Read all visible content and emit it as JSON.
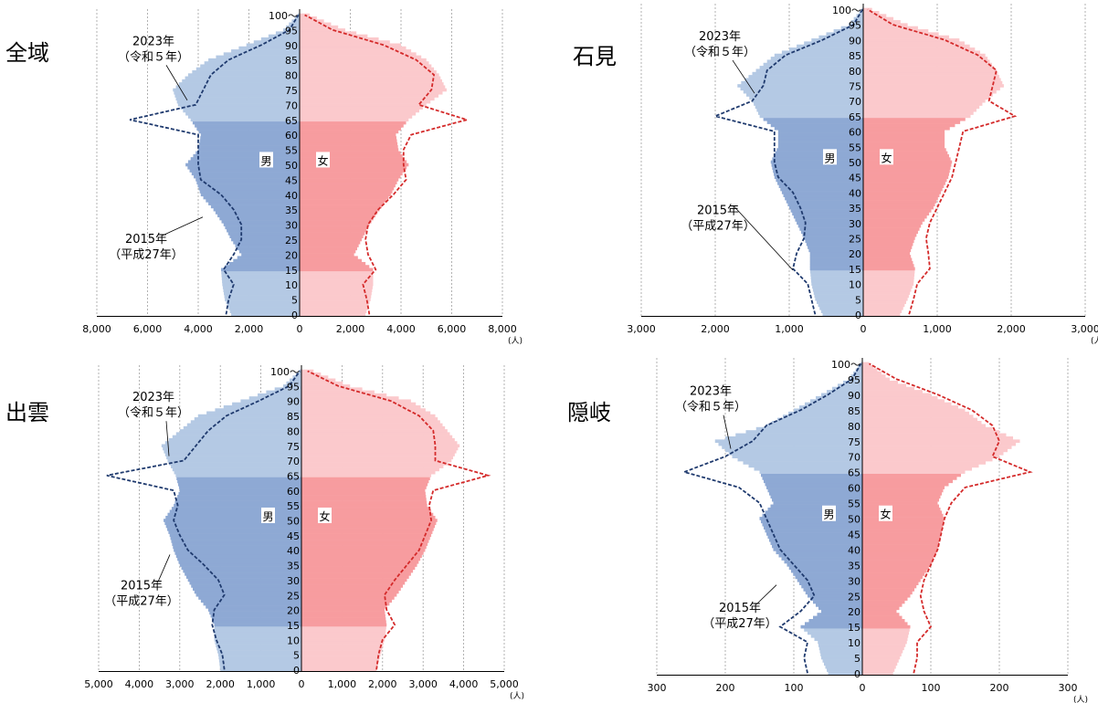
{
  "colors": {
    "male_base": "#b4c9e4",
    "male_mid": "#8ea9d4",
    "female_base": "#fbc9cc",
    "female_mid": "#f79c9f",
    "male_2015": "#1f3a6e",
    "female_2015": "#d42a2a",
    "grid": "#a0a0a0"
  },
  "panels": [
    {
      "region": "全域",
      "male_label": "男",
      "female_label": "女",
      "label2023_year": "2023年",
      "label2023_era": "（令和５年）",
      "label2015_year": "2015年",
      "label2015_era": "（平成27年）",
      "ticks_left": [
        "8,000",
        "6,000",
        "4,000",
        "2,000"
      ],
      "ticks_right": [
        "0",
        "2,000",
        "4,000",
        "6,000",
        "8,000"
      ],
      "unit": "(人)"
    },
    {
      "region": "石見",
      "male_label": "男",
      "female_label": "女",
      "label2023_year": "2023年",
      "label2023_era": "（令和５年）",
      "label2015_year": "2015年",
      "label2015_era": "（平成27年）",
      "ticks_left": [
        "3,000",
        "2,000",
        "1,000"
      ],
      "ticks_right": [
        "0",
        "1,000",
        "2,000",
        "3,000"
      ],
      "unit": "(人)"
    },
    {
      "region": "出雲",
      "male_label": "男",
      "female_label": "女",
      "label2023_year": "2023年",
      "label2023_era": "（令和５年）",
      "label2015_year": "2015年",
      "label2015_era": "（平成27年）",
      "ticks_left": [
        "5,000",
        "4,000",
        "3,000",
        "2,000",
        "1,000"
      ],
      "ticks_right": [
        "0",
        "1,000",
        "2,000",
        "3,000",
        "4,000",
        "5,000"
      ],
      "unit": "(人)"
    },
    {
      "region": "隠岐",
      "male_label": "男",
      "female_label": "女",
      "label2023_year": "2023年",
      "label2023_era": "（令和５年）",
      "label2015_year": "2015年",
      "label2015_era": "（平成27年）",
      "ticks_left": [
        "300",
        "200",
        "100"
      ],
      "ticks_right": [
        "0",
        "100",
        "200",
        "300"
      ],
      "unit": "(人)"
    }
  ],
  "age_labels": [
    "0",
    "5",
    "10",
    "15",
    "20",
    "25",
    "30",
    "35",
    "40",
    "45",
    "50",
    "55",
    "60",
    "65",
    "70",
    "75",
    "80",
    "85",
    "90",
    "95",
    "100～"
  ],
  "chart_data": [
    {
      "type": "bar",
      "title": "全域",
      "xmax": 8000,
      "ages": [
        0,
        5,
        10,
        15,
        20,
        25,
        30,
        35,
        40,
        45,
        50,
        55,
        60,
        65,
        70,
        75,
        80,
        85,
        90,
        95,
        100
      ],
      "series": [
        {
          "name": "男 2023",
          "values": [
            2700,
            2950,
            3050,
            3100,
            2300,
            2700,
            3000,
            3400,
            3900,
            4100,
            4500,
            4000,
            3900,
            4300,
            4800,
            5000,
            4400,
            3600,
            2100,
            650,
            80
          ]
        },
        {
          "name": "女 2023",
          "values": [
            2600,
            2800,
            2900,
            2900,
            2150,
            2450,
            2750,
            3150,
            3600,
            3900,
            4300,
            3900,
            3800,
            4300,
            5000,
            5800,
            5500,
            5000,
            4000,
            1800,
            400
          ]
        },
        {
          "name": "男 2015",
          "values": [
            2900,
            2800,
            2600,
            3000,
            2600,
            2300,
            2300,
            2600,
            3100,
            3900,
            4000,
            4000,
            4000,
            6700,
            4100,
            3800,
            3500,
            2800,
            1500,
            400,
            50
          ]
        },
        {
          "name": "女 2015",
          "values": [
            2750,
            2650,
            2500,
            3000,
            2700,
            2600,
            2700,
            3100,
            3700,
            4200,
            4100,
            4100,
            4400,
            6600,
            4700,
            5200,
            5300,
            4600,
            3300,
            1300,
            200
          ]
        }
      ]
    },
    {
      "type": "bar",
      "title": "石見",
      "xmax": 3000,
      "ages": [
        0,
        5,
        10,
        15,
        20,
        25,
        30,
        35,
        40,
        45,
        50,
        55,
        60,
        65,
        70,
        75,
        80,
        85,
        90,
        95,
        100
      ],
      "series": [
        {
          "name": "男 2023",
          "values": [
            550,
            650,
            700,
            720,
            720,
            800,
            900,
            1000,
            1100,
            1200,
            1250,
            1150,
            1150,
            1400,
            1500,
            1700,
            1450,
            1200,
            700,
            200,
            20
          ]
        },
        {
          "name": "女 2023",
          "values": [
            500,
            600,
            680,
            700,
            630,
            700,
            800,
            950,
            1050,
            1150,
            1200,
            1100,
            1100,
            1450,
            1650,
            1900,
            1800,
            1650,
            1300,
            600,
            120
          ]
        },
        {
          "name": "男 2015",
          "values": [
            650,
            700,
            750,
            950,
            900,
            800,
            780,
            850,
            950,
            1150,
            1200,
            1200,
            1200,
            2000,
            1500,
            1350,
            1300,
            1050,
            550,
            130,
            10
          ]
        },
        {
          "name": "女 2015",
          "values": [
            620,
            680,
            730,
            900,
            880,
            850,
            900,
            1000,
            1100,
            1200,
            1250,
            1300,
            1350,
            2050,
            1700,
            1750,
            1800,
            1550,
            1100,
            400,
            60
          ]
        }
      ]
    },
    {
      "type": "bar",
      "title": "出雲",
      "xmax": 5000,
      "ages": [
        0,
        5,
        10,
        15,
        20,
        25,
        30,
        35,
        40,
        45,
        50,
        55,
        60,
        65,
        70,
        75,
        80,
        85,
        90,
        95,
        100
      ],
      "series": [
        {
          "name": "男 2023",
          "values": [
            2000,
            2050,
            2150,
            2150,
            2300,
            2600,
            2800,
            3000,
            3150,
            3250,
            3400,
            3150,
            3000,
            3100,
            3300,
            3450,
            3000,
            2550,
            1500,
            450,
            60
          ]
        },
        {
          "name": "女 2023",
          "values": [
            1850,
            1950,
            2050,
            2100,
            2050,
            2350,
            2600,
            2850,
            3050,
            3200,
            3350,
            3100,
            3050,
            3200,
            3700,
            3900,
            3600,
            3300,
            2700,
            1200,
            300
          ]
        },
        {
          "name": "男 2015",
          "values": [
            1900,
            1950,
            2100,
            2200,
            2150,
            1900,
            2050,
            2400,
            2800,
            3000,
            3150,
            3050,
            3150,
            4800,
            2900,
            2600,
            2300,
            1850,
            1050,
            300,
            40
          ]
        },
        {
          "name": "女 2015",
          "values": [
            1850,
            1900,
            2000,
            2300,
            2100,
            2050,
            2300,
            2600,
            2900,
            3050,
            3200,
            3150,
            3250,
            4600,
            3300,
            3300,
            3250,
            2900,
            2200,
            900,
            150
          ]
        }
      ]
    },
    {
      "type": "bar",
      "title": "隠岐",
      "xmax": 300,
      "ages": [
        0,
        5,
        10,
        15,
        20,
        25,
        30,
        35,
        40,
        45,
        50,
        55,
        60,
        65,
        70,
        75,
        80,
        85,
        90,
        95,
        100
      ],
      "series": [
        {
          "name": "男 2023",
          "values": [
            50,
            60,
            65,
            90,
            60,
            80,
            95,
            110,
            130,
            140,
            150,
            130,
            140,
            150,
            190,
            215,
            140,
            100,
            60,
            20,
            3
          ]
        },
        {
          "name": "女 2023",
          "values": [
            45,
            55,
            65,
            70,
            50,
            70,
            85,
            100,
            110,
            115,
            120,
            110,
            120,
            150,
            200,
            230,
            180,
            150,
            100,
            40,
            10
          ]
        },
        {
          "name": "男 2015",
          "values": [
            80,
            85,
            80,
            120,
            90,
            70,
            80,
            100,
            120,
            130,
            140,
            150,
            180,
            260,
            200,
            160,
            140,
            90,
            50,
            15,
            2
          ]
        },
        {
          "name": "女 2015",
          "values": [
            75,
            80,
            80,
            100,
            90,
            85,
            90,
            100,
            110,
            115,
            120,
            130,
            150,
            245,
            190,
            200,
            190,
            160,
            110,
            50,
            10
          ]
        }
      ]
    }
  ]
}
